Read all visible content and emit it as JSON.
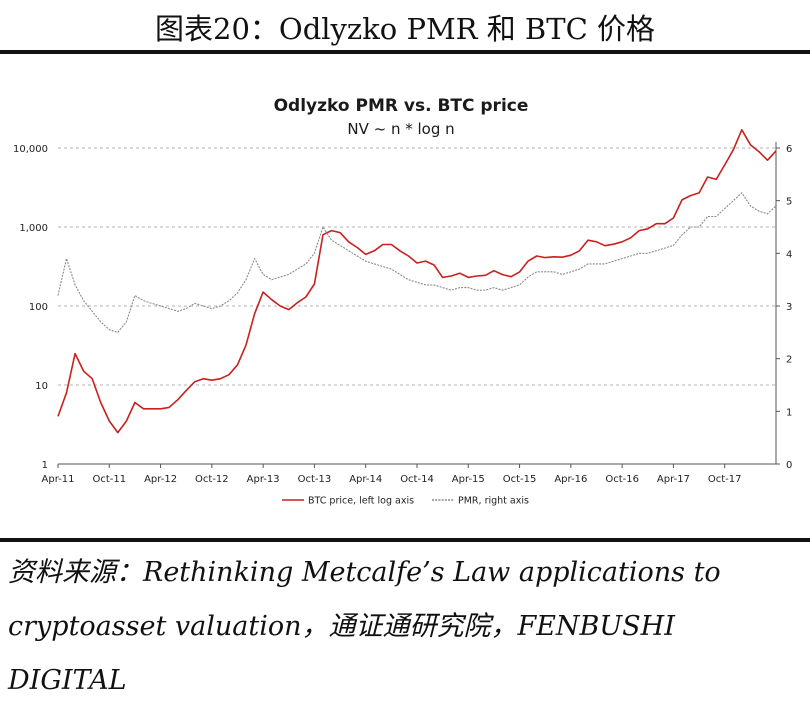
{
  "figure_title": "图表20：Odlyzko PMR 和 BTC 价格",
  "source_text": "资料来源：Rethinking Metcalfe’s Law applications to cryptoasset valuation，通证通研究院，FENBUSHI DIGITAL",
  "chart_data": {
    "type": "line",
    "title": "Odlyzko PMR vs. BTC price",
    "subtitle": "NV ~ n * log n",
    "x_ticks": [
      "Apr-11",
      "Oct-11",
      "Apr-12",
      "Oct-12",
      "Apr-13",
      "Oct-13",
      "Apr-14",
      "Oct-14",
      "Apr-15",
      "Oct-15",
      "Apr-16",
      "Oct-16",
      "Apr-17",
      "Oct-17"
    ],
    "y_left": {
      "scale": "log",
      "range": [
        1,
        10000
      ],
      "ticks": [
        "1",
        "10",
        "100",
        "1,000",
        "10,000"
      ]
    },
    "y_right": {
      "scale": "linear",
      "range": [
        0,
        6
      ],
      "ticks": [
        "0",
        "1",
        "2",
        "3",
        "4",
        "5",
        "6"
      ]
    },
    "grid": "horizontal dashed",
    "legend_position": "bottom",
    "colors": {
      "btc": "#c8211e",
      "pmr": "#8a8a8a"
    },
    "series": [
      {
        "name": "BTC price, left log axis",
        "axis": "left",
        "points": [
          [
            "Apr-11",
            4
          ],
          [
            "May-11",
            8
          ],
          [
            "Jun-11",
            25
          ],
          [
            "Jul-11",
            15
          ],
          [
            "Aug-11",
            12
          ],
          [
            "Sep-11",
            6
          ],
          [
            "Oct-11",
            3.5
          ],
          [
            "Nov-11",
            2.5
          ],
          [
            "Dec-11",
            3.5
          ],
          [
            "Jan-12",
            6
          ],
          [
            "Feb-12",
            5
          ],
          [
            "Mar-12",
            5
          ],
          [
            "Apr-12",
            5
          ],
          [
            "May-12",
            5.2
          ],
          [
            "Jun-12",
            6.5
          ],
          [
            "Jul-12",
            8.5
          ],
          [
            "Aug-12",
            11
          ],
          [
            "Sep-12",
            12
          ],
          [
            "Oct-12",
            11.5
          ],
          [
            "Nov-12",
            12
          ],
          [
            "Dec-12",
            13.5
          ],
          [
            "Jan-13",
            18
          ],
          [
            "Feb-13",
            32
          ],
          [
            "Mar-13",
            80
          ],
          [
            "Apr-13",
            150
          ],
          [
            "May-13",
            120
          ],
          [
            "Jun-13",
            100
          ],
          [
            "Jul-13",
            90
          ],
          [
            "Aug-13",
            110
          ],
          [
            "Sep-13",
            130
          ],
          [
            "Oct-13",
            190
          ],
          [
            "Nov-13",
            800
          ],
          [
            "Dec-13",
            900
          ],
          [
            "Jan-14",
            850
          ],
          [
            "Feb-14",
            650
          ],
          [
            "Mar-14",
            550
          ],
          [
            "Apr-14",
            450
          ],
          [
            "May-14",
            500
          ],
          [
            "Jun-14",
            600
          ],
          [
            "Jul-14",
            600
          ],
          [
            "Aug-14",
            500
          ],
          [
            "Sep-14",
            430
          ],
          [
            "Oct-14",
            350
          ],
          [
            "Nov-14",
            370
          ],
          [
            "Dec-14",
            330
          ],
          [
            "Jan-15",
            230
          ],
          [
            "Feb-15",
            240
          ],
          [
            "Mar-15",
            260
          ],
          [
            "Apr-15",
            230
          ],
          [
            "May-15",
            240
          ],
          [
            "Jun-15",
            245
          ],
          [
            "Jul-15",
            280
          ],
          [
            "Aug-15",
            250
          ],
          [
            "Sep-15",
            235
          ],
          [
            "Oct-15",
            270
          ],
          [
            "Nov-15",
            370
          ],
          [
            "Dec-15",
            430
          ],
          [
            "Jan-16",
            410
          ],
          [
            "Feb-16",
            420
          ],
          [
            "Mar-16",
            415
          ],
          [
            "Apr-16",
            440
          ],
          [
            "May-16",
            500
          ],
          [
            "Jun-16",
            680
          ],
          [
            "Jul-16",
            650
          ],
          [
            "Aug-16",
            580
          ],
          [
            "Sep-16",
            605
          ],
          [
            "Oct-16",
            650
          ],
          [
            "Nov-16",
            730
          ],
          [
            "Dec-16",
            900
          ],
          [
            "Jan-17",
            950
          ],
          [
            "Feb-17",
            1100
          ],
          [
            "Mar-17",
            1100
          ],
          [
            "Apr-17",
            1300
          ],
          [
            "May-17",
            2200
          ],
          [
            "Jun-17",
            2500
          ],
          [
            "Jul-17",
            2700
          ],
          [
            "Aug-17",
            4300
          ],
          [
            "Sep-17",
            4000
          ],
          [
            "Oct-17",
            6100
          ],
          [
            "Nov-17",
            9500
          ],
          [
            "Dec-17",
            17000
          ],
          [
            "Jan-18",
            11000
          ],
          [
            "Feb-18",
            9000
          ],
          [
            "Mar-18",
            7000
          ],
          [
            "Apr-18",
            9200
          ]
        ]
      },
      {
        "name": "PMR, right axis",
        "axis": "right",
        "points": [
          [
            "Apr-11",
            3.2
          ],
          [
            "May-11",
            3.9
          ],
          [
            "Jun-11",
            3.4
          ],
          [
            "Jul-11",
            3.1
          ],
          [
            "Aug-11",
            2.9
          ],
          [
            "Sep-11",
            2.7
          ],
          [
            "Oct-11",
            2.55
          ],
          [
            "Nov-11",
            2.5
          ],
          [
            "Dec-11",
            2.7
          ],
          [
            "Jan-12",
            3.2
          ],
          [
            "Feb-12",
            3.1
          ],
          [
            "Mar-12",
            3.05
          ],
          [
            "Apr-12",
            3.0
          ],
          [
            "May-12",
            2.95
          ],
          [
            "Jun-12",
            2.9
          ],
          [
            "Jul-12",
            2.95
          ],
          [
            "Aug-12",
            3.05
          ],
          [
            "Sep-12",
            3.0
          ],
          [
            "Oct-12",
            2.95
          ],
          [
            "Nov-12",
            3.0
          ],
          [
            "Dec-12",
            3.1
          ],
          [
            "Jan-13",
            3.25
          ],
          [
            "Feb-13",
            3.5
          ],
          [
            "Mar-13",
            3.9
          ],
          [
            "Apr-13",
            3.6
          ],
          [
            "May-13",
            3.5
          ],
          [
            "Jun-13",
            3.55
          ],
          [
            "Jul-13",
            3.6
          ],
          [
            "Aug-13",
            3.7
          ],
          [
            "Sep-13",
            3.8
          ],
          [
            "Oct-13",
            4.0
          ],
          [
            "Nov-13",
            4.5
          ],
          [
            "Dec-13",
            4.25
          ],
          [
            "Jan-14",
            4.15
          ],
          [
            "Feb-14",
            4.05
          ],
          [
            "Mar-14",
            3.95
          ],
          [
            "Apr-14",
            3.85
          ],
          [
            "May-14",
            3.8
          ],
          [
            "Jun-14",
            3.75
          ],
          [
            "Jul-14",
            3.7
          ],
          [
            "Aug-14",
            3.6
          ],
          [
            "Sep-14",
            3.5
          ],
          [
            "Oct-14",
            3.45
          ],
          [
            "Nov-14",
            3.4
          ],
          [
            "Dec-14",
            3.4
          ],
          [
            "Jan-15",
            3.35
          ],
          [
            "Feb-15",
            3.3
          ],
          [
            "Mar-15",
            3.35
          ],
          [
            "Apr-15",
            3.35
          ],
          [
            "May-15",
            3.3
          ],
          [
            "Jun-15",
            3.3
          ],
          [
            "Jul-15",
            3.35
          ],
          [
            "Aug-15",
            3.3
          ],
          [
            "Sep-15",
            3.35
          ],
          [
            "Oct-15",
            3.4
          ],
          [
            "Nov-15",
            3.55
          ],
          [
            "Dec-15",
            3.65
          ],
          [
            "Jan-16",
            3.65
          ],
          [
            "Feb-16",
            3.65
          ],
          [
            "Mar-16",
            3.6
          ],
          [
            "Apr-16",
            3.65
          ],
          [
            "May-16",
            3.7
          ],
          [
            "Jun-16",
            3.8
          ],
          [
            "Jul-16",
            3.8
          ],
          [
            "Aug-16",
            3.8
          ],
          [
            "Sep-16",
            3.85
          ],
          [
            "Oct-16",
            3.9
          ],
          [
            "Nov-16",
            3.95
          ],
          [
            "Dec-16",
            4.0
          ],
          [
            "Jan-17",
            4.0
          ],
          [
            "Feb-17",
            4.05
          ],
          [
            "Mar-17",
            4.1
          ],
          [
            "Apr-17",
            4.15
          ],
          [
            "May-17",
            4.35
          ],
          [
            "Jun-17",
            4.5
          ],
          [
            "Jul-17",
            4.5
          ],
          [
            "Aug-17",
            4.7
          ],
          [
            "Sep-17",
            4.7
          ],
          [
            "Oct-17",
            4.85
          ],
          [
            "Nov-17",
            5.0
          ],
          [
            "Dec-17",
            5.15
          ],
          [
            "Jan-18",
            4.9
          ],
          [
            "Feb-18",
            4.8
          ],
          [
            "Mar-18",
            4.75
          ],
          [
            "Apr-18",
            4.9
          ]
        ]
      }
    ]
  }
}
